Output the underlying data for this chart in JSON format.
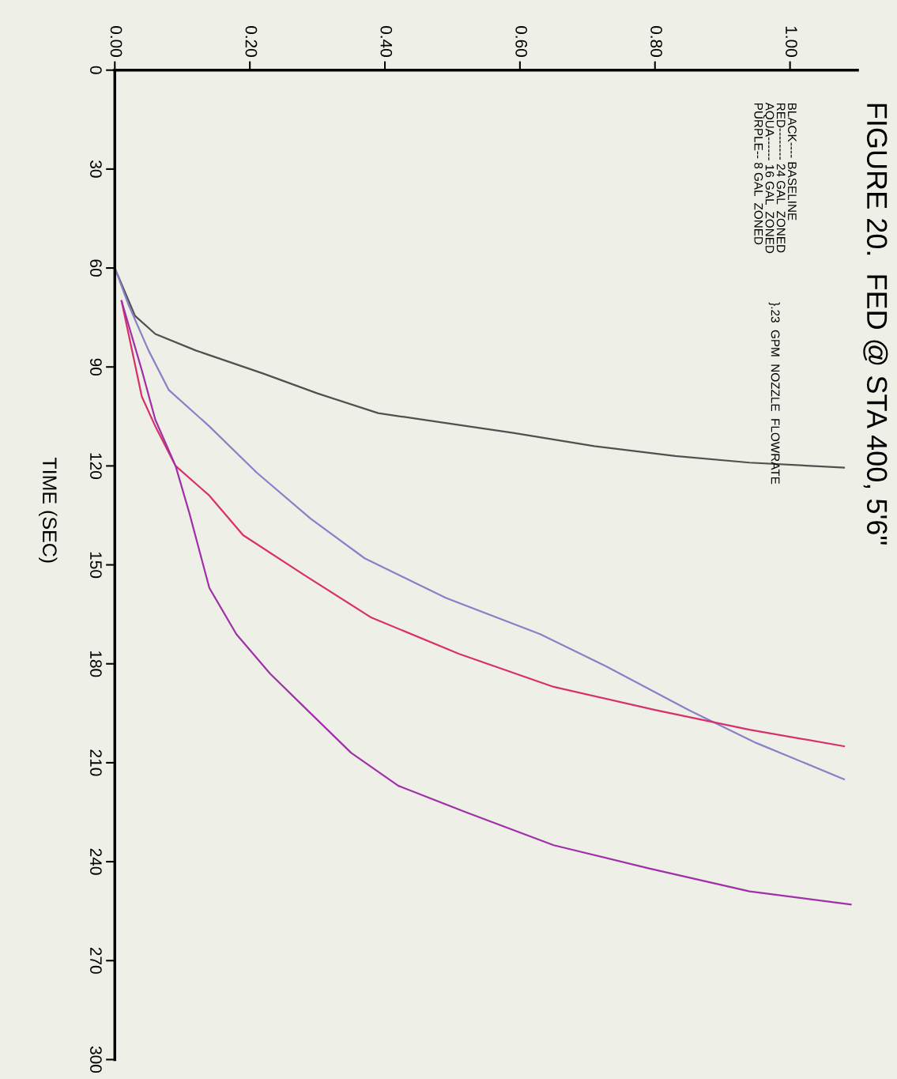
{
  "chart_data": {
    "type": "line",
    "title": "FIGURE 20.  FED @ STA 400, 5'6\"",
    "ylabel": "TIME (SEC)",
    "annotations": [
      "BLACK---- BASELINE",
      "RED-------- 24 GAL  ZONED",
      "AQUA------ 16 GAL  ZONED",
      "PURPLE-- 8 GAL  ZONED",
      "}.23  GPM  NOZZLE  FLOWRATE"
    ],
    "ylim": [
      300,
      0
    ],
    "yticks": [
      0,
      30,
      60,
      90,
      120,
      150,
      180,
      210,
      240,
      270,
      300
    ],
    "xlim": [
      0,
      1.1
    ],
    "xticks": [
      {
        "value": 0,
        "label": "0.00"
      },
      {
        "value": 0.2,
        "label": "0.20"
      },
      {
        "value": 0.4,
        "label": "0.40"
      },
      {
        "value": 0.6,
        "label": "0.60"
      },
      {
        "value": 0.8,
        "label": "0.80"
      },
      {
        "value": 1.0,
        "label": "1.00"
      }
    ],
    "grid": false,
    "legend": false,
    "marker": "none",
    "line_style": "solid",
    "series": [
      {
        "color": "#505050",
        "values": [
          60,
          74.5,
          80,
          85,
          92,
          98,
          104,
          107,
          110,
          114,
          117,
          119,
          120.5
        ],
        "x": [
          0,
          0.03,
          0.06,
          0.12,
          0.22,
          0.3,
          0.39,
          0.49,
          0.59,
          0.71,
          0.83,
          0.94,
          1.08
        ]
      },
      {
        "color": "#8a80c8",
        "values": [
          60,
          71,
          85,
          97,
          108,
          122,
          136,
          148,
          160,
          171,
          181,
          194,
          204,
          215
        ],
        "x": [
          0,
          0.02,
          0.05,
          0.08,
          0.14,
          0.21,
          0.29,
          0.37,
          0.49,
          0.63,
          0.73,
          0.85,
          0.95,
          1.08
        ]
      },
      {
        "color": "#d8306a",
        "values": [
          70,
          99,
          108,
          120,
          129,
          141,
          153,
          166,
          177,
          187,
          194,
          200,
          205
        ],
        "x": [
          0.01,
          0.04,
          0.06,
          0.09,
          0.14,
          0.19,
          0.28,
          0.38,
          0.51,
          0.65,
          0.8,
          0.94,
          1.08
        ]
      },
      {
        "color": "#a030a8",
        "values": [
          70,
          91,
          106,
          120,
          134,
          157,
          171,
          183,
          195,
          207,
          217,
          225,
          235,
          242,
          249,
          253
        ],
        "x": [
          0.01,
          0.04,
          0.06,
          0.09,
          0.11,
          0.14,
          0.18,
          0.23,
          0.29,
          0.35,
          0.42,
          0.52,
          0.65,
          0.79,
          0.94,
          1.09
        ]
      }
    ]
  }
}
